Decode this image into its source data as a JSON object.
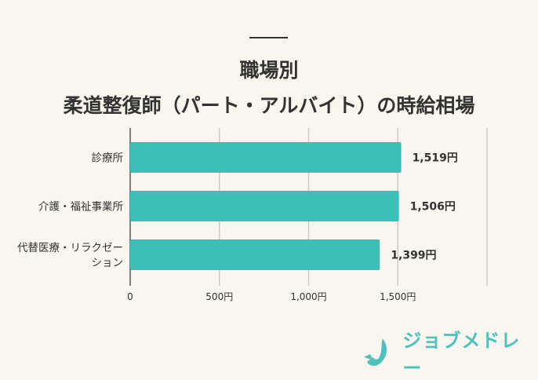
{
  "header": {
    "title_line1": "職場別",
    "title_line2": "柔道整復師（パート・アルバイト）の時給相場"
  },
  "chart_data": {
    "type": "bar",
    "orientation": "horizontal",
    "title": "職場別 柔道整復師（パート・アルバイト）の時給相場",
    "categories": [
      "診療所",
      "介護・福祉事業所",
      "代替医療・リラクゼーション"
    ],
    "category_label_lines": [
      [
        "診療所"
      ],
      [
        "介護・福祉事業所"
      ],
      [
        "代替医療・リラクゼー",
        "ション"
      ]
    ],
    "values": [
      1519,
      1506,
      1399
    ],
    "data_labels": [
      "1,519円",
      "1,506円",
      "1,399円"
    ],
    "xlim": [
      0,
      2000
    ],
    "xticks": [
      0,
      500,
      1000,
      1500,
      2000
    ],
    "xtick_labels": [
      "0",
      "500円",
      "1,000円",
      "1,500円",
      ""
    ],
    "grid": true,
    "bar_color": "#3bbfb6",
    "grid_color": "#cfcac2"
  },
  "logo": {
    "text": "ジョブメドレー",
    "color": "#4cc2bb"
  }
}
